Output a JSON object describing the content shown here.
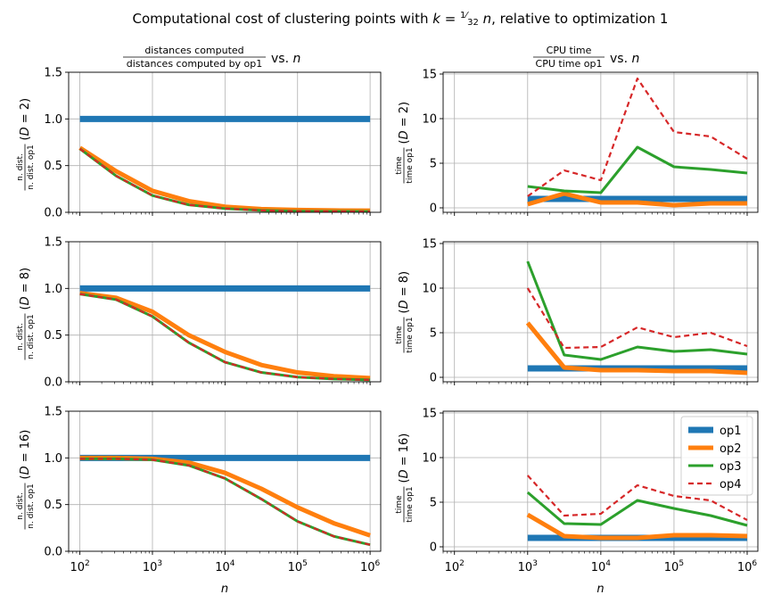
{
  "figure": {
    "suptitle": "Computational cost of clustering points with k = 1/32 n, relative to optimization 1",
    "col_titles": [
      {
        "numerator": "distances computed",
        "denominator": "distances computed by op1",
        "suffix": "vs. n"
      },
      {
        "numerator": "CPU time",
        "denominator": "CPU time op1",
        "suffix": "vs. n"
      }
    ],
    "xlabel": "n",
    "row_ylabels_left": [
      {
        "numerator": "n. dist.",
        "denominator": "n. dist. op1",
        "suffix": "(D = 2)"
      },
      {
        "numerator": "n. dist.",
        "denominator": "n. dist. op1",
        "suffix": "(D = 8)"
      },
      {
        "numerator": "n. dist.",
        "denominator": "n. dist. op1",
        "suffix": "(D = 16)"
      }
    ],
    "row_ylabels_right": [
      {
        "numerator": "time",
        "denominator": "time op1",
        "suffix": "(D = 2)"
      },
      {
        "numerator": "time",
        "denominator": "time op1",
        "suffix": "(D = 8)"
      },
      {
        "numerator": "time",
        "denominator": "time op1",
        "suffix": "(D = 16)"
      }
    ]
  },
  "colors": {
    "op1": "#1f77b4",
    "op2": "#ff7f0e",
    "op3": "#2ca02c",
    "op4": "#d62728",
    "grid": "#b0b0b0"
  },
  "chart_data": [
    {
      "type": "line",
      "panel": "D=2 distances",
      "xscale": "log",
      "xlim": [
        70,
        1400000
      ],
      "ylim": [
        0,
        1.5
      ],
      "yticks": [
        0.0,
        0.5,
        1.0,
        1.5
      ],
      "ytick_labels": [
        "0.0",
        "0.5",
        "1.0",
        "1.5"
      ],
      "grid": true,
      "x": [
        100,
        316,
        1000,
        3162,
        10000,
        31623,
        100000,
        316228,
        1000000
      ],
      "series": [
        {
          "name": "op1",
          "values": [
            1,
            1,
            1,
            1,
            1,
            1,
            1,
            1,
            1
          ]
        },
        {
          "name": "op2",
          "values": [
            0.69,
            0.44,
            0.23,
            0.12,
            0.06,
            0.035,
            0.025,
            0.02,
            0.018
          ]
        },
        {
          "name": "op3",
          "values": [
            0.68,
            0.39,
            0.18,
            0.08,
            0.04,
            0.02,
            0.012,
            0.01,
            0.008
          ]
        },
        {
          "name": "op4",
          "values": [
            0.68,
            0.39,
            0.18,
            0.08,
            0.04,
            0.02,
            0.012,
            0.01,
            0.008
          ]
        }
      ]
    },
    {
      "type": "line",
      "panel": "D=2 time",
      "xscale": "log",
      "xlim": [
        70,
        1400000
      ],
      "ylim": [
        -0.5,
        15.2
      ],
      "yticks": [
        0,
        5,
        10,
        15
      ],
      "ytick_labels": [
        "0",
        "5",
        "10",
        "15"
      ],
      "grid": true,
      "x": [
        1000,
        3162,
        10000,
        31623,
        100000,
        316228,
        1000000
      ],
      "series": [
        {
          "name": "op1",
          "values": [
            1,
            1,
            1,
            1,
            1,
            1,
            1
          ]
        },
        {
          "name": "op2",
          "values": [
            0.4,
            1.6,
            0.6,
            0.6,
            0.3,
            0.5,
            0.5
          ]
        },
        {
          "name": "op3",
          "values": [
            2.4,
            1.9,
            1.7,
            6.8,
            4.6,
            4.3,
            3.9
          ]
        },
        {
          "name": "op4",
          "values": [
            1.3,
            4.2,
            3.1,
            14.5,
            8.5,
            8.0,
            5.5
          ]
        }
      ]
    },
    {
      "type": "line",
      "panel": "D=8 distances",
      "xscale": "log",
      "xlim": [
        70,
        1400000
      ],
      "ylim": [
        0,
        1.5
      ],
      "yticks": [
        0.0,
        0.5,
        1.0,
        1.5
      ],
      "ytick_labels": [
        "0.0",
        "0.5",
        "1.0",
        "1.5"
      ],
      "grid": true,
      "x": [
        100,
        316,
        1000,
        3162,
        10000,
        31623,
        100000,
        316228,
        1000000
      ],
      "series": [
        {
          "name": "op1",
          "values": [
            1,
            1,
            1,
            1,
            1,
            1,
            1,
            1,
            1
          ]
        },
        {
          "name": "op2",
          "values": [
            0.95,
            0.9,
            0.75,
            0.5,
            0.32,
            0.18,
            0.1,
            0.06,
            0.04
          ]
        },
        {
          "name": "op3",
          "values": [
            0.94,
            0.88,
            0.7,
            0.42,
            0.21,
            0.1,
            0.05,
            0.03,
            0.02
          ]
        },
        {
          "name": "op4",
          "values": [
            0.94,
            0.88,
            0.7,
            0.42,
            0.21,
            0.1,
            0.05,
            0.03,
            0.02
          ]
        }
      ]
    },
    {
      "type": "line",
      "panel": "D=8 time",
      "xscale": "log",
      "xlim": [
        70,
        1400000
      ],
      "ylim": [
        -0.5,
        15.2
      ],
      "yticks": [
        0,
        5,
        10,
        15
      ],
      "ytick_labels": [
        "0",
        "5",
        "10",
        "15"
      ],
      "grid": true,
      "x": [
        1000,
        3162,
        10000,
        31623,
        100000,
        316228,
        1000000
      ],
      "series": [
        {
          "name": "op1",
          "values": [
            1,
            1,
            1,
            1,
            1,
            1,
            1
          ]
        },
        {
          "name": "op2",
          "values": [
            6.1,
            1.1,
            0.8,
            0.8,
            0.7,
            0.7,
            0.5
          ]
        },
        {
          "name": "op3",
          "values": [
            13,
            2.5,
            2.0,
            3.4,
            2.9,
            3.1,
            2.6
          ]
        },
        {
          "name": "op4",
          "values": [
            10.0,
            3.3,
            3.4,
            5.6,
            4.5,
            5.0,
            3.5
          ]
        }
      ]
    },
    {
      "type": "line",
      "panel": "D=16 distances",
      "xscale": "log",
      "xlim": [
        70,
        1400000
      ],
      "ylim": [
        0,
        1.5
      ],
      "yticks": [
        0.0,
        0.5,
        1.0,
        1.5
      ],
      "ytick_labels": [
        "0.0",
        "0.5",
        "1.0",
        "1.5"
      ],
      "grid": true,
      "x": [
        100,
        316,
        1000,
        3162,
        10000,
        31623,
        100000,
        316228,
        1000000
      ],
      "series": [
        {
          "name": "op1",
          "values": [
            1,
            1,
            1,
            1,
            1,
            1,
            1,
            1,
            1
          ]
        },
        {
          "name": "op2",
          "values": [
            1.0,
            1.0,
            0.99,
            0.95,
            0.84,
            0.67,
            0.47,
            0.3,
            0.17
          ]
        },
        {
          "name": "op3",
          "values": [
            0.99,
            0.99,
            0.98,
            0.92,
            0.78,
            0.56,
            0.32,
            0.16,
            0.07
          ]
        },
        {
          "name": "op4",
          "values": [
            0.99,
            0.99,
            0.98,
            0.92,
            0.78,
            0.56,
            0.32,
            0.16,
            0.07
          ]
        }
      ]
    },
    {
      "type": "line",
      "panel": "D=16 time",
      "xscale": "log",
      "xlim": [
        70,
        1400000
      ],
      "ylim": [
        -0.5,
        15.2
      ],
      "yticks": [
        0,
        5,
        10,
        15
      ],
      "ytick_labels": [
        "0",
        "5",
        "10",
        "15"
      ],
      "grid": true,
      "legend": "top-right",
      "x": [
        1000,
        3162,
        10000,
        31623,
        100000,
        316228,
        1000000
      ],
      "series": [
        {
          "name": "op1",
          "values": [
            1,
            1,
            1,
            1,
            1,
            1,
            1
          ]
        },
        {
          "name": "op2",
          "values": [
            3.6,
            1.2,
            1.0,
            1.0,
            1.3,
            1.3,
            1.2
          ]
        },
        {
          "name": "op3",
          "values": [
            6.1,
            2.6,
            2.5,
            5.2,
            4.3,
            3.5,
            2.4
          ]
        },
        {
          "name": "op4",
          "values": [
            8.0,
            3.5,
            3.7,
            6.9,
            5.7,
            5.2,
            3.0
          ]
        }
      ]
    }
  ],
  "xtick_labels": [
    {
      "base": "10",
      "exp": "2"
    },
    {
      "base": "10",
      "exp": "3"
    },
    {
      "base": "10",
      "exp": "4"
    },
    {
      "base": "10",
      "exp": "5"
    },
    {
      "base": "10",
      "exp": "6"
    }
  ],
  "legend_entries": [
    "op1",
    "op2",
    "op3",
    "op4"
  ]
}
